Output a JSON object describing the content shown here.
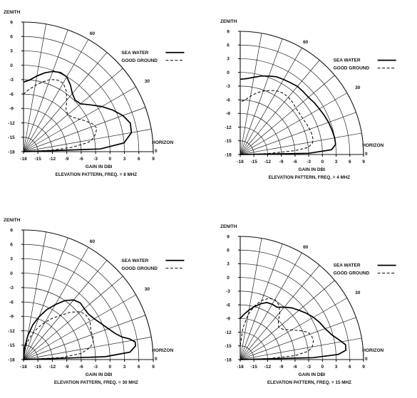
{
  "chart_data": [
    {
      "type": "polar-line",
      "caption": "ELEVATION PATTERN, FREQ. = 8 MHZ",
      "xlabel": "GAIN IN DBI",
      "zenith_label": "ZENITH",
      "horizon_label": "HORIZON",
      "x_ticks": [
        "-18",
        "-15",
        "-12",
        "-9",
        "-6",
        "-3",
        "0",
        "3",
        "6",
        "9"
      ],
      "y_ticks": [
        "9",
        "6",
        "3",
        "0",
        "-3",
        "-6",
        "-9",
        "-12",
        "-15",
        "-18"
      ],
      "angle_labels": [
        "60",
        "30",
        "0"
      ],
      "rlim": [
        -18,
        9
      ],
      "legend": {
        "placement": "top-right",
        "items": [
          {
            "name": "SEA WATER",
            "style": "solid"
          },
          {
            "name": "GOOD GROUND",
            "style": "dashed"
          }
        ]
      },
      "series": [
        {
          "name": "SEA WATER",
          "points": [
            [
              0,
              -18
            ],
            [
              2,
              -2
            ],
            [
              5,
              3
            ],
            [
              10,
              4.8
            ],
            [
              15,
              5
            ],
            [
              20,
              4
            ],
            [
              25,
              2.5
            ],
            [
              30,
              0.8
            ],
            [
              35,
              -1
            ],
            [
              40,
              -2.5
            ],
            [
              45,
              -2.8
            ],
            [
              50,
              -2.2
            ],
            [
              55,
              -1
            ],
            [
              60,
              0
            ],
            [
              65,
              0.2
            ],
            [
              70,
              -0.2
            ],
            [
              75,
              -1
            ],
            [
              80,
              -2
            ],
            [
              85,
              -3
            ],
            [
              90,
              -3.5
            ]
          ]
        },
        {
          "name": "GOOD GROUND",
          "points": [
            [
              0,
              -18
            ],
            [
              3,
              -12
            ],
            [
              5,
              -8
            ],
            [
              8,
              -4.5
            ],
            [
              10,
              -3.5
            ],
            [
              14,
              -2.5
            ],
            [
              18,
              -2
            ],
            [
              22,
              -2.5
            ],
            [
              26,
              -3.5
            ],
            [
              30,
              -4.5
            ],
            [
              35,
              -5.5
            ],
            [
              40,
              -6
            ],
            [
              45,
              -5.5
            ],
            [
              50,
              -4
            ],
            [
              55,
              -2.5
            ],
            [
              60,
              -1.5
            ],
            [
              65,
              -1.5
            ],
            [
              70,
              -2
            ],
            [
              75,
              -3
            ],
            [
              80,
              -4
            ],
            [
              85,
              -5
            ],
            [
              90,
              -6
            ]
          ]
        }
      ]
    },
    {
      "type": "polar-line",
      "caption": "ELEVATION PATTERN, FREQ. = 4 MHZ",
      "xlabel": "GAIN IN DBI",
      "zenith_label": "ZENITH",
      "horizon_label": "HORIZON",
      "x_ticks": [
        "-18",
        "-15",
        "-12",
        "-9",
        "-6",
        "-3",
        "0",
        "3",
        "6",
        "9"
      ],
      "y_ticks": [
        "9",
        "6",
        "3",
        "0",
        "-3",
        "-6",
        "-9",
        "-12",
        "-15",
        "-18"
      ],
      "angle_labels": [
        "60",
        "30",
        "0"
      ],
      "rlim": [
        -18,
        9
      ],
      "legend": {
        "placement": "top-right",
        "items": [
          {
            "name": "SEA WATER",
            "style": "solid"
          },
          {
            "name": "GOOD GROUND",
            "style": "dashed"
          }
        ]
      },
      "series": [
        {
          "name": "SEA WATER",
          "points": [
            [
              0,
              -18
            ],
            [
              1,
              -3
            ],
            [
              3,
              2
            ],
            [
              6,
              3
            ],
            [
              10,
              3
            ],
            [
              15,
              2.8
            ],
            [
              20,
              2.6
            ],
            [
              25,
              2.3
            ],
            [
              30,
              2
            ],
            [
              35,
              1.8
            ],
            [
              40,
              1.5
            ],
            [
              45,
              1.5
            ],
            [
              50,
              1.5
            ],
            [
              55,
              1.2
            ],
            [
              60,
              1
            ],
            [
              65,
              0.8
            ],
            [
              70,
              0.3
            ],
            [
              75,
              -0.2
            ],
            [
              80,
              -0.8
            ],
            [
              85,
              -1.3
            ],
            [
              90,
              -1.5
            ]
          ]
        },
        {
          "name": "GOOD GROUND",
          "points": [
            [
              0,
              -18
            ],
            [
              2,
              -12
            ],
            [
              4,
              -6
            ],
            [
              6,
              -3
            ],
            [
              9,
              -2
            ],
            [
              12,
              -1.7
            ],
            [
              16,
              -1.7
            ],
            [
              20,
              -1.8
            ],
            [
              25,
              -2
            ],
            [
              30,
              -2.2
            ],
            [
              35,
              -2.2
            ],
            [
              40,
              -2.1
            ],
            [
              45,
              -1.8
            ],
            [
              50,
              -1.6
            ],
            [
              55,
              -1.6
            ],
            [
              60,
              -1.9
            ],
            [
              65,
              -2.5
            ],
            [
              70,
              -3.2
            ],
            [
              75,
              -4
            ],
            [
              80,
              -5
            ],
            [
              85,
              -6
            ],
            [
              90,
              -6.5
            ]
          ]
        }
      ]
    },
    {
      "type": "polar-line",
      "caption": "ELEVATION PATTERN, FREQ. = 30 MHZ",
      "xlabel": "GAIN IN DBI",
      "zenith_label": "ZENITH",
      "horizon_label": "HORIZON",
      "x_ticks": [
        "-18",
        "-15",
        "-12",
        "-9",
        "-6",
        "-3",
        "0",
        "3",
        "6",
        "9"
      ],
      "y_ticks": [
        "9",
        "6",
        "3",
        "0",
        "-3",
        "-6",
        "-9",
        "-12",
        "-15",
        "-18"
      ],
      "angle_labels": [
        "60",
        "30",
        "0"
      ],
      "rlim": [
        -18,
        9
      ],
      "legend": {
        "placement": "top-right",
        "items": [
          {
            "name": "SEA WATER",
            "style": "solid"
          },
          {
            "name": "GOOD GROUND",
            "style": "dashed"
          }
        ]
      },
      "series": [
        {
          "name": "SEA WATER",
          "points": [
            [
              0,
              -18
            ],
            [
              2,
              -1
            ],
            [
              4,
              4.2
            ],
            [
              7,
              5.5
            ],
            [
              9,
              5.5
            ],
            [
              11,
              4.5
            ],
            [
              13,
              3
            ],
            [
              16,
              1.8
            ],
            [
              20,
              0.8
            ],
            [
              25,
              -0.2
            ],
            [
              30,
              -1
            ],
            [
              35,
              -1.5
            ],
            [
              40,
              -1.5
            ],
            [
              45,
              -1.3
            ],
            [
              50,
              -1.8
            ],
            [
              55,
              -3
            ],
            [
              60,
              -4.8
            ],
            [
              65,
              -6.5
            ],
            [
              70,
              -8.5
            ],
            [
              75,
              -10.5
            ],
            [
              80,
              -13
            ],
            [
              85,
              -15.5
            ],
            [
              90,
              -18
            ]
          ]
        },
        {
          "name": "GOOD GROUND",
          "points": [
            [
              0,
              -18
            ],
            [
              3,
              -10
            ],
            [
              6,
              -6
            ],
            [
              10,
              -4
            ],
            [
              14,
              -3
            ],
            [
              18,
              -2.8
            ],
            [
              22,
              -2.8
            ],
            [
              26,
              -2.5
            ],
            [
              30,
              -2
            ],
            [
              35,
              -2
            ],
            [
              40,
              -2.5
            ],
            [
              45,
              -4
            ],
            [
              50,
              -6
            ],
            [
              55,
              -7.5
            ],
            [
              60,
              -9
            ],
            [
              65,
              -10.5
            ],
            [
              70,
              -12
            ],
            [
              75,
              -13.5
            ],
            [
              80,
              -15
            ],
            [
              85,
              -16.5
            ],
            [
              90,
              -18
            ]
          ]
        }
      ]
    },
    {
      "type": "polar-line",
      "caption": "ELEVATION PATTERN, FREQ. = 15 MHZ",
      "xlabel": "GAIN IN DBI",
      "zenith_label": "ZENITH",
      "horizon_label": "HORIZON",
      "x_ticks": [
        "-18",
        "-15",
        "-12",
        "-9",
        "-6",
        "-3",
        "0",
        "3",
        "6",
        "9"
      ],
      "y_ticks": [
        "9",
        "6",
        "3",
        "0",
        "-3",
        "-6",
        "-9",
        "-12",
        "-15",
        "-18"
      ],
      "angle_labels": [
        "60",
        "30",
        "0"
      ],
      "rlim": [
        -18,
        9
      ],
      "legend": {
        "placement": "top-right",
        "items": [
          {
            "name": "SEA WATER",
            "style": "solid"
          },
          {
            "name": "GOOD GROUND",
            "style": "dashed"
          }
        ]
      },
      "series": [
        {
          "name": "SEA WATER",
          "points": [
            [
              0,
              -18
            ],
            [
              1.5,
              -2
            ],
            [
              3,
              3.5
            ],
            [
              5,
              5.2
            ],
            [
              8,
              5.3
            ],
            [
              11,
              4.2
            ],
            [
              15,
              2.8
            ],
            [
              20,
              1.8
            ],
            [
              25,
              1.2
            ],
            [
              30,
              0.5
            ],
            [
              35,
              -0.3
            ],
            [
              40,
              -1.2
            ],
            [
              45,
              -2
            ],
            [
              50,
              -3
            ],
            [
              55,
              -4
            ],
            [
              60,
              -4
            ],
            [
              65,
              -4.2
            ],
            [
              70,
              -5
            ],
            [
              75,
              -6
            ],
            [
              80,
              -7
            ],
            [
              85,
              -8
            ],
            [
              90,
              -9
            ]
          ]
        },
        {
          "name": "GOOD GROUND",
          "points": [
            [
              0,
              -18
            ],
            [
              2,
              -12
            ],
            [
              4,
              -6
            ],
            [
              7,
              -3
            ],
            [
              10,
              -2
            ],
            [
              14,
              -1.5
            ],
            [
              18,
              -1.5
            ],
            [
              22,
              -2
            ],
            [
              26,
              -3.5
            ],
            [
              30,
              -5
            ],
            [
              35,
              -6.5
            ],
            [
              40,
              -7
            ],
            [
              45,
              -6.2
            ],
            [
              50,
              -4.5
            ],
            [
              55,
              -3.3
            ],
            [
              60,
              -2.8
            ],
            [
              65,
              -3.2
            ],
            [
              70,
              -4.2
            ],
            [
              75,
              -5.8
            ],
            [
              80,
              -8
            ],
            [
              85,
              -11
            ],
            [
              90,
              -15
            ]
          ]
        }
      ]
    }
  ]
}
